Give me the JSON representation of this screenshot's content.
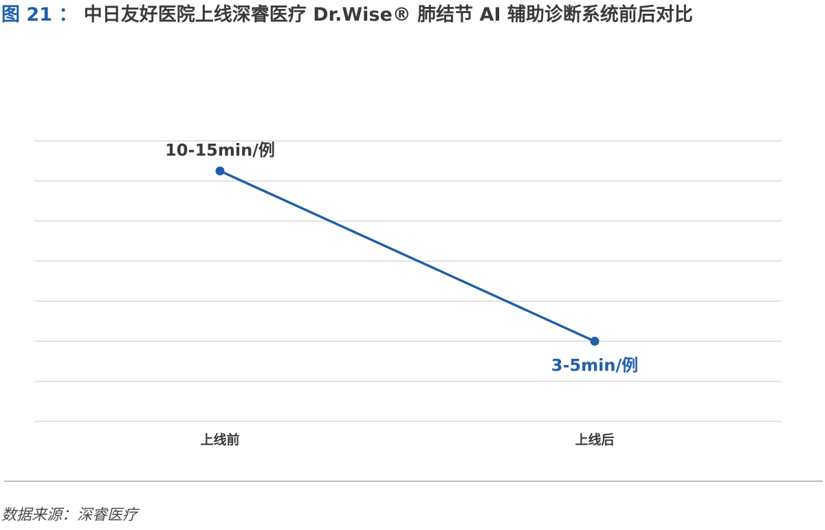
{
  "title": {
    "label": "图 21",
    "separator": "：",
    "text": "中日友好医院上线深睿医疗 Dr.Wise® 肺结节 AI 辅助诊断系统前后对比"
  },
  "source": "数据来源：深睿医疗",
  "colors": {
    "accent": "#1f5ea8",
    "text": "#3a3a3a",
    "grid": "#d9d9d9"
  },
  "chart_data": {
    "type": "line",
    "categories": [
      "上线前",
      "上线后"
    ],
    "series": [
      {
        "values": [
          12.5,
          4
        ],
        "data_labels": [
          "10-15min/例",
          "3-5min/例"
        ]
      }
    ],
    "ylim": [
      0,
      14
    ],
    "grid": true,
    "legend": "none"
  }
}
